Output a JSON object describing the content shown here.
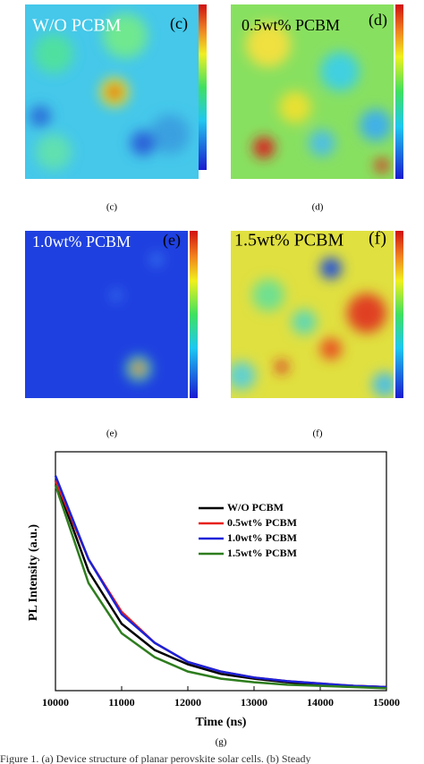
{
  "panels": [
    {
      "title": "W/O PCBM",
      "tag": "(c)",
      "caption": "(c)"
    },
    {
      "title": "0.5wt% PCBM",
      "tag": "(d)",
      "caption": "(d)"
    },
    {
      "title": "1.0wt% PCBM",
      "tag": "(e)",
      "caption": "(e)"
    },
    {
      "title": "1.5wt% PCBM",
      "tag": "(f)",
      "caption": "(f)"
    }
  ],
  "chart_data": {
    "type": "line",
    "caption": "(g)",
    "x_label": "Time (ns)",
    "y_label": "PL Intensity (a.u.)",
    "x": [
      10000,
      10500,
      11000,
      11500,
      12000,
      12500,
      13000,
      13500,
      14000,
      14500,
      15000
    ],
    "series": [
      {
        "name": "W/O PCBM",
        "color": "#000000",
        "values": [
          0.88,
          0.5,
          0.28,
          0.17,
          0.11,
          0.07,
          0.05,
          0.035,
          0.025,
          0.02,
          0.015
        ]
      },
      {
        "name": "0.5wt% PCBM",
        "color": "#e8211c",
        "values": [
          0.88,
          0.55,
          0.33,
          0.2,
          0.12,
          0.08,
          0.055,
          0.04,
          0.03,
          0.02,
          0.015
        ]
      },
      {
        "name": "1.0wt% PCBM",
        "color": "#1a22d8",
        "values": [
          0.9,
          0.55,
          0.32,
          0.2,
          0.12,
          0.08,
          0.055,
          0.04,
          0.03,
          0.02,
          0.015
        ]
      },
      {
        "name": "1.5wt% PCBM",
        "color": "#2e7d1e",
        "values": [
          0.86,
          0.45,
          0.24,
          0.14,
          0.08,
          0.05,
          0.035,
          0.025,
          0.02,
          0.015,
          0.01
        ]
      }
    ],
    "xlim": [
      10000,
      15000
    ],
    "xticks": [
      10000,
      11000,
      12000,
      13000,
      14000,
      15000
    ],
    "ylim": [
      0,
      1
    ],
    "legend": "upper right"
  },
  "caption": "Figure 1. (a) Device structure of planar perovskite solar cells. (b) Steady"
}
